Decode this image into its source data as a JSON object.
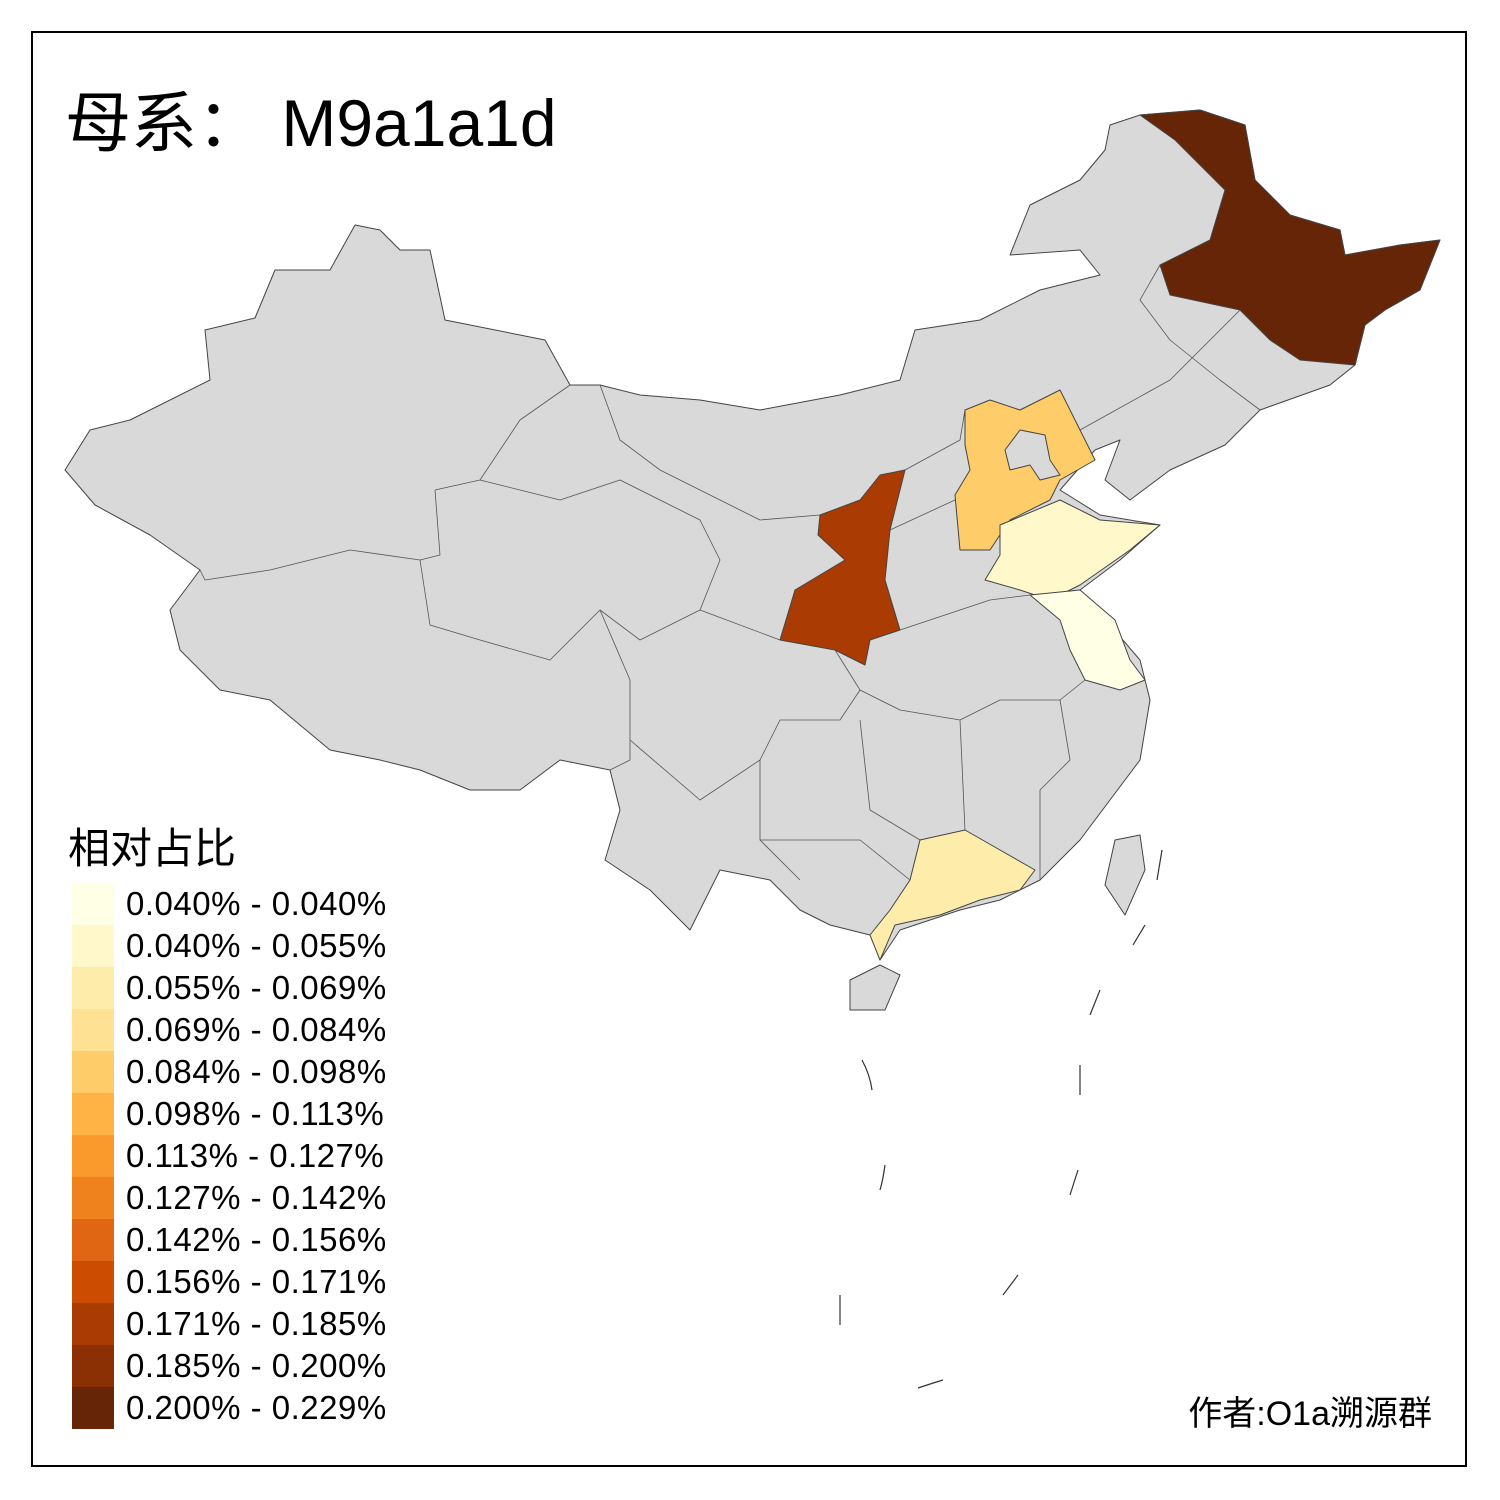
{
  "title": {
    "prefix": "母系：",
    "haplogroup": "M9a1a1d"
  },
  "legend": {
    "title": "相对占比",
    "bins": [
      {
        "label": "0.040% - 0.040%",
        "color": "#FFFFE5"
      },
      {
        "label": "0.040% - 0.055%",
        "color": "#FFF8CA"
      },
      {
        "label": "0.055% - 0.069%",
        "color": "#FEEDAA"
      },
      {
        "label": "0.069% - 0.084%",
        "color": "#FEE193"
      },
      {
        "label": "0.084% - 0.098%",
        "color": "#FECC68"
      },
      {
        "label": "0.098% - 0.113%",
        "color": "#FEB344"
      },
      {
        "label": "0.113% - 0.127%",
        "color": "#FB9A2C"
      },
      {
        "label": "0.127% - 0.142%",
        "color": "#F0821E"
      },
      {
        "label": "0.142% - 0.156%",
        "color": "#E06614"
      },
      {
        "label": "0.156% - 0.171%",
        "color": "#CC4C02"
      },
      {
        "label": "0.171% - 0.185%",
        "color": "#AA3C03"
      },
      {
        "label": "0.185% - 0.200%",
        "color": "#8A3004"
      },
      {
        "label": "0.200% - 0.229%",
        "color": "#662506"
      }
    ]
  },
  "map": {
    "no_data_color": "#D9D9D9",
    "regions": [
      {
        "id": "heilongjiang",
        "bin": 12
      },
      {
        "id": "shaanxi",
        "bin": 10
      },
      {
        "id": "hebei",
        "bin": 4
      },
      {
        "id": "shandong",
        "bin": 1
      },
      {
        "id": "jiangsu",
        "bin": 0
      },
      {
        "id": "guangdong",
        "bin": 2
      }
    ]
  },
  "author": "作者:O1a溯源群"
}
